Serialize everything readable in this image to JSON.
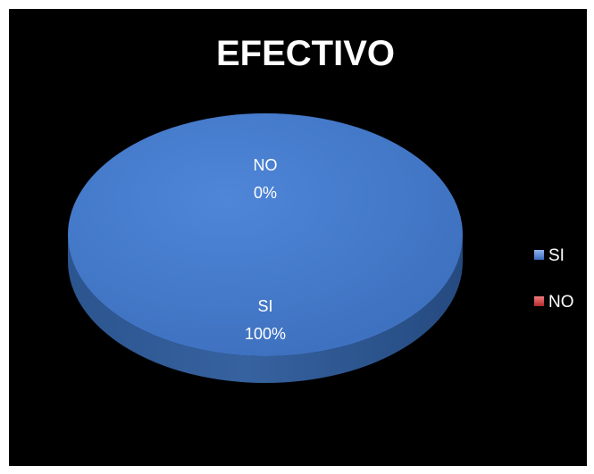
{
  "chart_data": {
    "type": "pie",
    "title": "EFECTIVO",
    "categories": [
      "SI",
      "NO"
    ],
    "values": [
      100,
      0
    ],
    "data_labels": [
      {
        "category": "SI",
        "percent": "100%"
      },
      {
        "category": "NO",
        "percent": "0%"
      }
    ],
    "legend": {
      "position": "right",
      "items": [
        {
          "label": "SI",
          "color": "#4a7fd0"
        },
        {
          "label": "NO",
          "color": "#c0393c"
        }
      ]
    },
    "style": "3d",
    "background_color": "#000000"
  }
}
